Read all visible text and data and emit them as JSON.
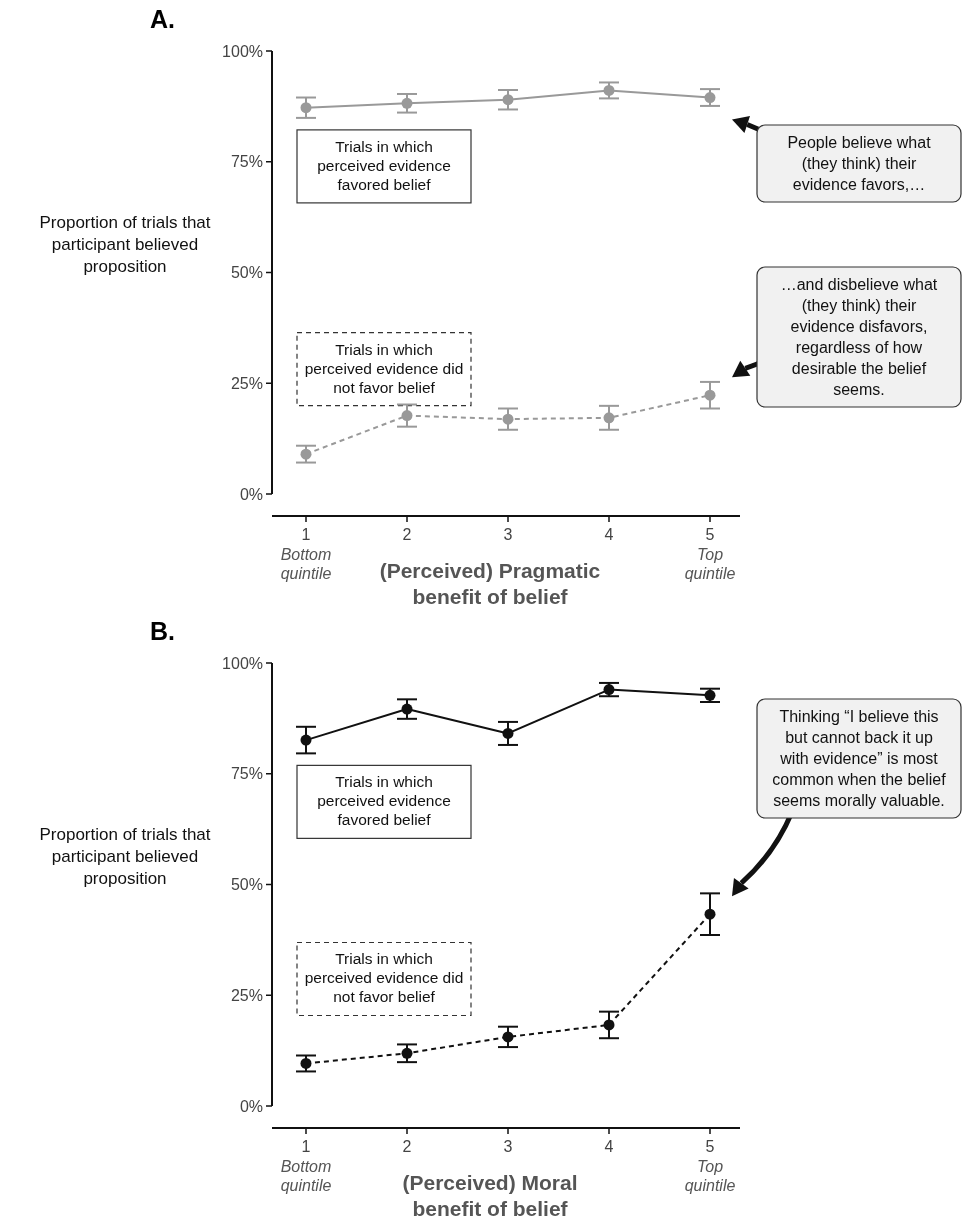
{
  "chart_data": [
    {
      "type": "line",
      "title": "A.",
      "xlabel": "(Perceived) Pragmatic benefit of belief",
      "ylabel": "Proportion of trials that participant believed proposition",
      "categories": [
        "1",
        "2",
        "3",
        "4",
        "5"
      ],
      "series": [
        {
          "name": "Trials in which perceived evidence favored belief",
          "color": "#999999",
          "line_style": "solid",
          "values": [
            87.2,
            88.2,
            89.0,
            91.1,
            89.5
          ],
          "errors": [
            2.3,
            2.1,
            2.2,
            1.8,
            1.9
          ]
        },
        {
          "name": "Trials in which perceived evidence did not favor belief",
          "color": "#999999",
          "line_style": "dashed",
          "values": [
            9.0,
            17.7,
            16.9,
            17.2,
            22.3
          ],
          "errors": [
            1.9,
            2.5,
            2.4,
            2.7,
            3.0
          ]
        }
      ],
      "marker": "circle",
      "ylim": [
        0,
        100
      ],
      "yticks": [
        {
          "value": 0,
          "label": "0%"
        },
        {
          "value": 25,
          "label": "25%"
        },
        {
          "value": 50,
          "label": "50%"
        },
        {
          "value": 75,
          "label": "75%"
        },
        {
          "value": 100,
          "label": "100%"
        }
      ],
      "annotations": [
        "Bottom quintile",
        "Top quintile",
        "People believe what (they think) their evidence favors,…",
        "…and disbelieve what (they think) their evidence disfavors, regardless of how desirable the belief seems."
      ]
    },
    {
      "type": "line",
      "title": "B.",
      "xlabel": "(Perceived) Moral benefit of belief",
      "ylabel": "Proportion of trials that participant believed proposition",
      "categories": [
        "1",
        "2",
        "3",
        "4",
        "5"
      ],
      "series": [
        {
          "name": "Trials in which perceived evidence favored belief",
          "color": "#111111",
          "line_style": "solid",
          "values": [
            82.6,
            89.6,
            84.1,
            94.0,
            92.7
          ],
          "errors": [
            3.0,
            2.2,
            2.6,
            1.5,
            1.5
          ]
        },
        {
          "name": "Trials in which perceived evidence did not favor belief",
          "color": "#111111",
          "line_style": "dashed",
          "values": [
            9.6,
            11.9,
            15.6,
            18.3,
            43.3
          ],
          "errors": [
            1.8,
            2.0,
            2.3,
            3.0,
            4.7
          ]
        }
      ],
      "marker": "circle",
      "ylim": [
        0,
        100
      ],
      "yticks": [
        {
          "value": 0,
          "label": "0%"
        },
        {
          "value": 25,
          "label": "25%"
        },
        {
          "value": 50,
          "label": "50%"
        },
        {
          "value": 75,
          "label": "75%"
        },
        {
          "value": 100,
          "label": "100%"
        }
      ],
      "annotations": [
        "Bottom quintile",
        "Top quintile",
        "Thinking “I believe this but cannot back it up with evidence” is most common when the belief seems morally valuable."
      ]
    }
  ]
}
